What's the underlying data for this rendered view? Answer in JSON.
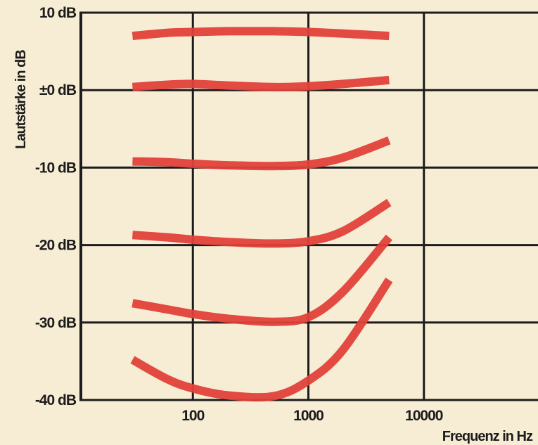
{
  "chart_data": {
    "type": "line",
    "title": "",
    "xlabel": "Frequenz in Hz",
    "ylabel": "Lautstärke in dB",
    "xscale": "log",
    "xlim": [
      10,
      100000
    ],
    "ylim": [
      -40,
      10
    ],
    "x_ticks": [
      {
        "value": 100,
        "label": "100"
      },
      {
        "value": 1000,
        "label": "1000"
      },
      {
        "value": 10000,
        "label": "10000"
      }
    ],
    "y_ticks": [
      {
        "value": 10,
        "label": "10 dB"
      },
      {
        "value": 0,
        "label": "±0 dB"
      },
      {
        "value": -10,
        "label": "-10 dB"
      },
      {
        "value": -20,
        "label": "-20 dB"
      },
      {
        "value": -30,
        "label": "-30 dB"
      },
      {
        "value": -40,
        "label": "-40 dB"
      }
    ],
    "grid": true,
    "line_color": "#e0413a",
    "series": [
      {
        "x": [
          30,
          60,
          100,
          200,
          500,
          1000,
          2000,
          5000
        ],
        "y": [
          7,
          7.4,
          7.5,
          7.6,
          7.6,
          7.5,
          7.3,
          7.0
        ]
      },
      {
        "x": [
          30,
          60,
          100,
          200,
          500,
          1000,
          2000,
          5000
        ],
        "y": [
          0.4,
          0.7,
          0.8,
          0.6,
          0.4,
          0.5,
          0.8,
          1.3
        ]
      },
      {
        "x": [
          30,
          60,
          100,
          200,
          500,
          1000,
          2000,
          5000
        ],
        "y": [
          -9.2,
          -9.3,
          -9.5,
          -9.7,
          -9.8,
          -9.6,
          -8.7,
          -6.5
        ]
      },
      {
        "x": [
          30,
          60,
          100,
          200,
          500,
          1000,
          2000,
          5000
        ],
        "y": [
          -18.7,
          -19.0,
          -19.3,
          -19.6,
          -19.8,
          -19.5,
          -18.2,
          -14.5
        ]
      },
      {
        "x": [
          30,
          60,
          100,
          200,
          500,
          1000,
          2000,
          5000
        ],
        "y": [
          -27.5,
          -28.3,
          -28.9,
          -29.5,
          -29.9,
          -29.3,
          -26.0,
          -19.0
        ]
      },
      {
        "x": [
          30,
          60,
          100,
          200,
          500,
          1000,
          2000,
          5000
        ],
        "y": [
          -34.8,
          -37.3,
          -38.5,
          -39.4,
          -39.5,
          -37.5,
          -33.5,
          -24.5
        ]
      }
    ]
  }
}
